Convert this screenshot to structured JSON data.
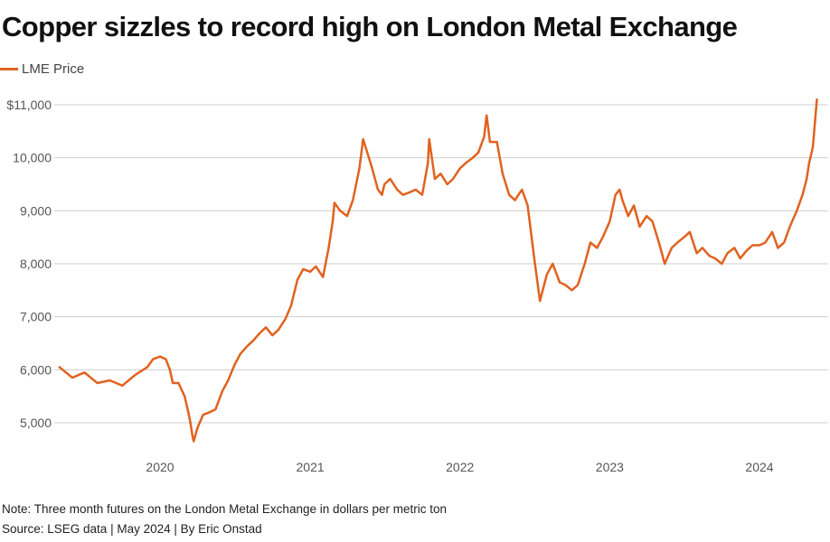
{
  "title": "Copper sizzles to record high on London Metal Exchange",
  "legend": {
    "label": "LME Price"
  },
  "note": "Note: Three month futures on the London Metal Exchange in dollars per metric ton",
  "source": "Source: LSEG data | May 2024 | By Eric Onstad",
  "colors": {
    "line": "#e1621f",
    "grid": "#cfcfcf",
    "axis_text": "#555555"
  },
  "chart_data": {
    "type": "line",
    "title": "Copper sizzles to record high on London Metal Exchange",
    "xlabel": "",
    "ylabel": "",
    "grid": true,
    "legend_position": "top-left",
    "xlim": [
      "2019-05-01",
      "2024-05-20"
    ],
    "ylim": [
      4500,
      11000
    ],
    "y_ticks": [
      5000,
      6000,
      7000,
      8000,
      9000,
      10000,
      11000
    ],
    "y_tick_labels": [
      "5,000",
      "6,000",
      "7,000",
      "8,000",
      "9,000",
      "10,000",
      "$11,000"
    ],
    "x_ticks": [
      "2020-01-01",
      "2021-01-01",
      "2022-01-01",
      "2023-01-01",
      "2024-01-01"
    ],
    "x_tick_labels": [
      "2020",
      "2021",
      "2022",
      "2023",
      "2024"
    ],
    "series": [
      {
        "name": "LME Price",
        "x": [
          "2019-05-01",
          "2019-06-01",
          "2019-07-01",
          "2019-08-01",
          "2019-09-01",
          "2019-10-01",
          "2019-11-01",
          "2019-12-01",
          "2019-12-15",
          "2020-01-01",
          "2020-01-15",
          "2020-01-25",
          "2020-02-01",
          "2020-02-15",
          "2020-03-01",
          "2020-03-10",
          "2020-03-15",
          "2020-03-20",
          "2020-03-23",
          "2020-04-01",
          "2020-04-15",
          "2020-05-01",
          "2020-05-15",
          "2020-06-01",
          "2020-06-15",
          "2020-07-01",
          "2020-07-15",
          "2020-08-01",
          "2020-08-15",
          "2020-09-01",
          "2020-09-15",
          "2020-10-01",
          "2020-10-15",
          "2020-11-01",
          "2020-11-15",
          "2020-12-01",
          "2020-12-15",
          "2021-01-01",
          "2021-01-15",
          "2021-02-01",
          "2021-02-15",
          "2021-02-25",
          "2021-03-01",
          "2021-03-15",
          "2021-04-01",
          "2021-04-15",
          "2021-05-01",
          "2021-05-10",
          "2021-05-20",
          "2021-06-01",
          "2021-06-15",
          "2021-06-25",
          "2021-07-01",
          "2021-07-15",
          "2021-08-01",
          "2021-08-15",
          "2021-09-01",
          "2021-09-15",
          "2021-10-01",
          "2021-10-15",
          "2021-10-18",
          "2021-11-01",
          "2021-11-15",
          "2021-12-01",
          "2021-12-15",
          "2022-01-01",
          "2022-01-15",
          "2022-02-01",
          "2022-02-15",
          "2022-03-01",
          "2022-03-07",
          "2022-03-15",
          "2022-04-01",
          "2022-04-15",
          "2022-05-01",
          "2022-05-15",
          "2022-06-01",
          "2022-06-15",
          "2022-07-01",
          "2022-07-15",
          "2022-08-01",
          "2022-08-15",
          "2022-09-01",
          "2022-09-15",
          "2022-10-01",
          "2022-10-15",
          "2022-11-01",
          "2022-11-15",
          "2022-12-01",
          "2022-12-15",
          "2023-01-01",
          "2023-01-15",
          "2023-01-25",
          "2023-02-01",
          "2023-02-15",
          "2023-03-01",
          "2023-03-15",
          "2023-04-01",
          "2023-04-15",
          "2023-05-01",
          "2023-05-15",
          "2023-06-01",
          "2023-06-15",
          "2023-07-01",
          "2023-07-15",
          "2023-08-01",
          "2023-08-15",
          "2023-09-01",
          "2023-09-15",
          "2023-10-01",
          "2023-10-15",
          "2023-11-01",
          "2023-11-15",
          "2023-12-01",
          "2023-12-15",
          "2024-01-01",
          "2024-01-15",
          "2024-02-01",
          "2024-02-15",
          "2024-03-01",
          "2024-03-15",
          "2024-04-01",
          "2024-04-15",
          "2024-04-25",
          "2024-05-01",
          "2024-05-10",
          "2024-05-20"
        ],
        "values": [
          6050,
          5850,
          5950,
          5750,
          5800,
          5700,
          5900,
          6050,
          6200,
          6250,
          6200,
          6000,
          5750,
          5750,
          5500,
          5200,
          5000,
          4750,
          4650,
          4900,
          5150,
          5200,
          5250,
          5600,
          5800,
          6100,
          6300,
          6450,
          6550,
          6700,
          6800,
          6650,
          6750,
          6950,
          7200,
          7700,
          7900,
          7850,
          7950,
          7750,
          8300,
          8800,
          9150,
          9000,
          8900,
          9200,
          9800,
          10350,
          10100,
          9800,
          9400,
          9300,
          9500,
          9600,
          9400,
          9300,
          9350,
          9400,
          9300,
          9900,
          10350,
          9600,
          9700,
          9500,
          9600,
          9800,
          9900,
          10000,
          10100,
          10400,
          10800,
          10300,
          10300,
          9700,
          9300,
          9200,
          9400,
          9100,
          8100,
          7300,
          7800,
          8000,
          7650,
          7600,
          7500,
          7600,
          8000,
          8400,
          8300,
          8500,
          8800,
          9300,
          9400,
          9200,
          8900,
          9100,
          8700,
          8900,
          8800,
          8400,
          8000,
          8300,
          8400,
          8500,
          8600,
          8200,
          8300,
          8150,
          8100,
          8000,
          8200,
          8300,
          8100,
          8250,
          8350,
          8350,
          8400,
          8600,
          8300,
          8400,
          8700,
          9000,
          9300,
          9600,
          9900,
          10200,
          11100
        ]
      }
    ]
  }
}
